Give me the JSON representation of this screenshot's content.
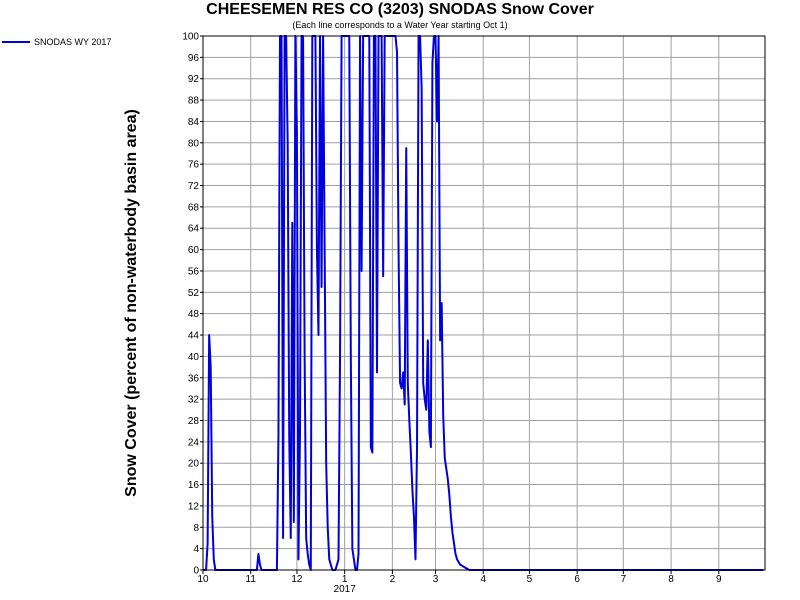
{
  "chart_data": {
    "type": "line",
    "title": "CHEESEMEN RES CO (3203) SNODAS Snow Cover",
    "subtitle": "(Each line corresponds to a Water Year starting Oct 1)",
    "ylabel": "Snow Cover (percent of non-waterbody basin area)",
    "xlabel": "",
    "ylim": [
      0,
      100
    ],
    "xlim": [
      "2016-10-01",
      "2017-09-30"
    ],
    "y_ticks": [
      0,
      4,
      8,
      12,
      16,
      20,
      24,
      28,
      32,
      36,
      40,
      44,
      48,
      52,
      56,
      60,
      64,
      68,
      72,
      76,
      80,
      84,
      88,
      92,
      96,
      100
    ],
    "x_ticks": [
      {
        "date": "2016-10-01",
        "label": "10"
      },
      {
        "date": "2016-11-01",
        "label": "11"
      },
      {
        "date": "2016-12-01",
        "label": "12"
      },
      {
        "date": "2017-01-01",
        "label": "1"
      },
      {
        "date": "2017-02-01",
        "label": "2"
      },
      {
        "date": "2017-03-01",
        "label": "3"
      },
      {
        "date": "2017-04-01",
        "label": "4"
      },
      {
        "date": "2017-05-01",
        "label": "5"
      },
      {
        "date": "2017-06-01",
        "label": "6"
      },
      {
        "date": "2017-07-01",
        "label": "7"
      },
      {
        "date": "2017-08-01",
        "label": "8"
      },
      {
        "date": "2017-09-01",
        "label": "9"
      }
    ],
    "year_label": "2017",
    "grid": true,
    "legend_position": "top-left, outside plot",
    "series": [
      {
        "name": "SNODAS WY 2017",
        "color": "#0000dd",
        "points": [
          [
            "2016-10-01",
            0
          ],
          [
            "2016-10-03",
            0
          ],
          [
            "2016-10-04",
            5
          ],
          [
            "2016-10-05",
            44
          ],
          [
            "2016-10-06",
            38
          ],
          [
            "2016-10-07",
            10
          ],
          [
            "2016-10-08",
            2
          ],
          [
            "2016-10-09",
            0
          ],
          [
            "2016-11-05",
            0
          ],
          [
            "2016-11-06",
            3
          ],
          [
            "2016-11-07",
            1
          ],
          [
            "2016-11-08",
            0
          ],
          [
            "2016-11-18",
            0
          ],
          [
            "2016-11-19",
            25
          ],
          [
            "2016-11-20",
            100
          ],
          [
            "2016-11-21",
            100
          ],
          [
            "2016-11-22",
            6
          ],
          [
            "2016-11-23",
            100
          ],
          [
            "2016-11-24",
            100
          ],
          [
            "2016-11-25",
            80
          ],
          [
            "2016-11-26",
            25
          ],
          [
            "2016-11-27",
            6
          ],
          [
            "2016-11-28",
            65
          ],
          [
            "2016-11-29",
            9
          ],
          [
            "2016-11-30",
            100
          ],
          [
            "2016-12-01",
            82
          ],
          [
            "2016-12-02",
            2
          ],
          [
            "2016-12-03",
            26
          ],
          [
            "2016-12-04",
            100
          ],
          [
            "2016-12-05",
            100
          ],
          [
            "2016-12-06",
            40
          ],
          [
            "2016-12-07",
            6
          ],
          [
            "2016-12-08",
            3
          ],
          [
            "2016-12-09",
            1
          ],
          [
            "2016-12-10",
            0
          ],
          [
            "2016-12-11",
            100
          ],
          [
            "2016-12-12",
            100
          ],
          [
            "2016-12-13",
            100
          ],
          [
            "2016-12-14",
            60
          ],
          [
            "2016-12-15",
            44
          ],
          [
            "2016-12-16",
            100
          ],
          [
            "2016-12-17",
            53
          ],
          [
            "2016-12-18",
            100
          ],
          [
            "2016-12-19",
            60
          ],
          [
            "2016-12-20",
            20
          ],
          [
            "2016-12-21",
            8
          ],
          [
            "2016-12-22",
            2
          ],
          [
            "2016-12-23",
            1
          ],
          [
            "2016-12-24",
            0
          ],
          [
            "2016-12-26",
            0
          ],
          [
            "2016-12-27",
            1
          ],
          [
            "2016-12-28",
            2
          ],
          [
            "2016-12-29",
            40
          ],
          [
            "2016-12-30",
            100
          ],
          [
            "2016-12-31",
            100
          ],
          [
            "2017-01-01",
            100
          ],
          [
            "2017-01-02",
            100
          ],
          [
            "2017-01-04",
            100
          ],
          [
            "2017-01-05",
            40
          ],
          [
            "2017-01-06",
            4
          ],
          [
            "2017-01-07",
            2
          ],
          [
            "2017-01-08",
            0
          ],
          [
            "2017-01-09",
            0
          ],
          [
            "2017-01-10",
            3
          ],
          [
            "2017-01-11",
            100
          ],
          [
            "2017-01-12",
            56
          ],
          [
            "2017-01-13",
            100
          ],
          [
            "2017-01-14",
            100
          ],
          [
            "2017-01-16",
            100
          ],
          [
            "2017-01-17",
            100
          ],
          [
            "2017-01-18",
            23
          ],
          [
            "2017-01-19",
            22
          ],
          [
            "2017-01-20",
            100
          ],
          [
            "2017-01-21",
            100
          ],
          [
            "2017-01-22",
            37
          ],
          [
            "2017-01-23",
            100
          ],
          [
            "2017-01-24",
            100
          ],
          [
            "2017-01-25",
            100
          ],
          [
            "2017-01-26",
            55
          ],
          [
            "2017-01-27",
            100
          ],
          [
            "2017-01-28",
            100
          ],
          [
            "2017-01-30",
            100
          ],
          [
            "2017-02-01",
            100
          ],
          [
            "2017-02-03",
            100
          ],
          [
            "2017-02-04",
            97
          ],
          [
            "2017-02-05",
            60
          ],
          [
            "2017-02-06",
            35
          ],
          [
            "2017-02-07",
            34
          ],
          [
            "2017-02-08",
            37
          ],
          [
            "2017-02-09",
            31
          ],
          [
            "2017-02-10",
            79
          ],
          [
            "2017-02-11",
            35
          ],
          [
            "2017-02-12",
            28
          ],
          [
            "2017-02-13",
            22
          ],
          [
            "2017-02-14",
            15
          ],
          [
            "2017-02-15",
            10
          ],
          [
            "2017-02-16",
            2
          ],
          [
            "2017-02-17",
            23
          ],
          [
            "2017-02-18",
            100
          ],
          [
            "2017-02-19",
            100
          ],
          [
            "2017-02-20",
            90
          ],
          [
            "2017-02-21",
            35
          ],
          [
            "2017-02-22",
            32
          ],
          [
            "2017-02-23",
            30
          ],
          [
            "2017-02-24",
            43
          ],
          [
            "2017-02-25",
            26
          ],
          [
            "2017-02-26",
            23
          ],
          [
            "2017-02-27",
            95
          ],
          [
            "2017-02-28",
            100
          ],
          [
            "2017-03-01",
            100
          ],
          [
            "2017-03-02",
            84
          ],
          [
            "2017-03-03",
            100
          ],
          [
            "2017-03-04",
            43
          ],
          [
            "2017-03-05",
            50
          ],
          [
            "2017-03-06",
            29
          ],
          [
            "2017-03-07",
            21
          ],
          [
            "2017-03-08",
            19
          ],
          [
            "2017-03-09",
            17
          ],
          [
            "2017-03-10",
            14
          ],
          [
            "2017-03-11",
            10
          ],
          [
            "2017-03-12",
            7
          ],
          [
            "2017-03-13",
            5
          ],
          [
            "2017-03-14",
            3
          ],
          [
            "2017-03-15",
            2
          ],
          [
            "2017-03-17",
            1
          ],
          [
            "2017-03-20",
            0.5
          ],
          [
            "2017-03-23",
            0
          ],
          [
            "2017-09-30",
            0
          ]
        ]
      }
    ]
  }
}
